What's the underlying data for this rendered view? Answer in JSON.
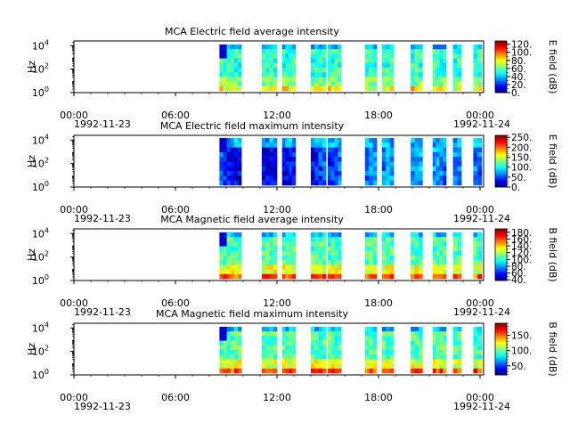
{
  "chart_data": [
    {
      "type": "heatmap",
      "title": "MCA  Electric field average intensity",
      "ylabel": "Hz",
      "colorbar_label": "E field (dB)",
      "colorbar_ticks": [
        "0.",
        "20.",
        "40.",
        "60.",
        "80.",
        "100.",
        "120."
      ],
      "colorbar_range": [
        0,
        128
      ],
      "x_ticks": [
        "00:00",
        "06:00",
        "12:00",
        "18:00",
        "00:00"
      ],
      "x_tick_hours": [
        0,
        6,
        12,
        18,
        24
      ],
      "date_start": "1992-11-23",
      "date_end": "1992-11-24",
      "y_ticks_exp": [
        "0",
        "2",
        "4"
      ],
      "y_range_log10": [
        0,
        4.4
      ],
      "palette": "average",
      "data_intervals_hours": [
        [
          8.6,
          9.9
        ],
        [
          11.1,
          12.0
        ],
        [
          12.3,
          13.1
        ],
        [
          14.0,
          14.9
        ],
        [
          15.0,
          15.8
        ],
        [
          17.2,
          17.9
        ],
        [
          18.2,
          18.9
        ],
        [
          19.9,
          20.6
        ],
        [
          21.2,
          22.0
        ],
        [
          22.4,
          22.9
        ],
        [
          23.6,
          24.1
        ]
      ]
    },
    {
      "type": "heatmap",
      "title": "MCA  Electric field maximum intensity",
      "ylabel": "Hz",
      "colorbar_label": "E field (dB)",
      "colorbar_ticks": [
        "0.",
        "50.",
        "100.",
        "150.",
        "200.",
        "250."
      ],
      "colorbar_range": [
        0,
        260
      ],
      "x_ticks": [
        "00:00",
        "06:00",
        "12:00",
        "18:00",
        "00:00"
      ],
      "x_tick_hours": [
        0,
        6,
        12,
        18,
        24
      ],
      "date_start": "1992-11-23",
      "date_end": "1992-11-24",
      "y_ticks_exp": [
        "0",
        "2",
        "4"
      ],
      "y_range_log10": [
        0,
        4.4
      ],
      "palette": "maximum",
      "data_intervals_hours": [
        [
          8.6,
          9.9
        ],
        [
          11.1,
          12.0
        ],
        [
          12.3,
          13.1
        ],
        [
          14.0,
          14.9
        ],
        [
          15.0,
          15.8
        ],
        [
          17.2,
          17.9
        ],
        [
          18.2,
          18.9
        ],
        [
          19.9,
          20.6
        ],
        [
          21.2,
          22.0
        ],
        [
          22.4,
          22.9
        ],
        [
          23.6,
          24.1
        ]
      ]
    },
    {
      "type": "heatmap",
      "title": "MCA  Magnetic field average intensity",
      "ylabel": "Hz",
      "colorbar_label": "B field (dB)",
      "colorbar_ticks": [
        "40.",
        "60.",
        "80.",
        "100.",
        "120.",
        "140.",
        "160.",
        "180."
      ],
      "colorbar_range": [
        38,
        190
      ],
      "x_ticks": [
        "00:00",
        "06:00",
        "12:00",
        "18:00",
        "00:00"
      ],
      "x_tick_hours": [
        0,
        6,
        12,
        18,
        24
      ],
      "date_start": "1992-11-23",
      "date_end": "1992-11-24",
      "y_ticks_exp": [
        "0",
        "2",
        "4"
      ],
      "y_range_log10": [
        0,
        4.4
      ],
      "palette": "magnetic",
      "data_intervals_hours": [
        [
          8.6,
          9.9
        ],
        [
          11.1,
          12.0
        ],
        [
          12.3,
          13.1
        ],
        [
          14.0,
          14.9
        ],
        [
          15.0,
          15.8
        ],
        [
          17.2,
          17.9
        ],
        [
          18.2,
          18.9
        ],
        [
          19.9,
          20.6
        ],
        [
          21.2,
          22.0
        ],
        [
          22.4,
          22.9
        ],
        [
          23.6,
          24.1
        ]
      ]
    },
    {
      "type": "heatmap",
      "title": "MCA  Magnetic field maximum intensity",
      "ylabel": "Hz",
      "colorbar_label": "B field (dB)",
      "colorbar_ticks": [
        "50.",
        "100.",
        "150."
      ],
      "colorbar_range": [
        20,
        190
      ],
      "x_ticks": [
        "00:00",
        "06:00",
        "12:00",
        "18:00",
        "00:00"
      ],
      "x_tick_hours": [
        0,
        6,
        12,
        18,
        24
      ],
      "date_start": "1992-11-23",
      "date_end": "1992-11-24",
      "y_ticks_exp": [
        "0",
        "2",
        "4"
      ],
      "y_range_log10": [
        0,
        4.4
      ],
      "palette": "magnetic",
      "data_intervals_hours": [
        [
          8.6,
          9.9
        ],
        [
          11.1,
          12.0
        ],
        [
          12.3,
          13.1
        ],
        [
          14.0,
          14.9
        ],
        [
          15.0,
          15.8
        ],
        [
          17.2,
          17.9
        ],
        [
          18.2,
          18.9
        ],
        [
          19.9,
          20.6
        ],
        [
          21.2,
          22.0
        ],
        [
          22.4,
          22.9
        ],
        [
          23.6,
          24.1
        ]
      ]
    }
  ]
}
